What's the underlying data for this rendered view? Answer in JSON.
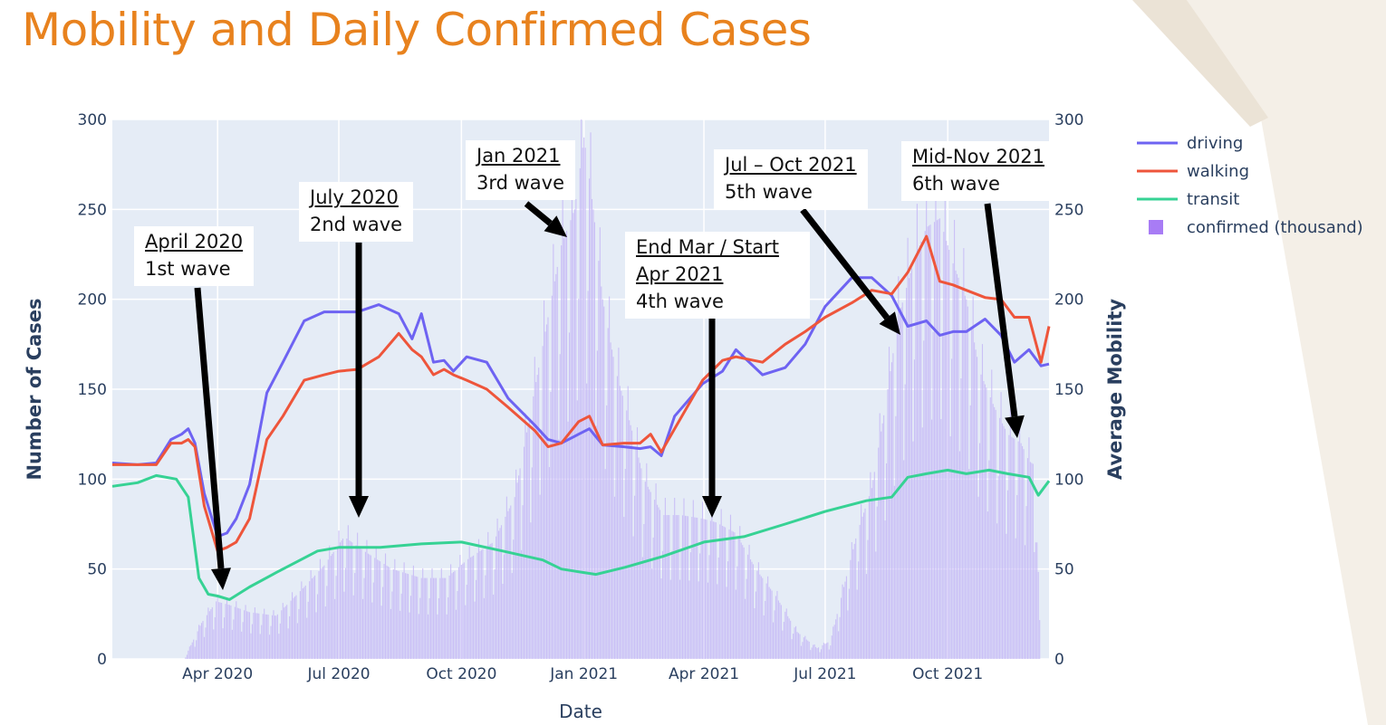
{
  "slide": {
    "title": "Mobility and Daily Confirmed Cases"
  },
  "chart_data": {
    "type": "line",
    "xlabel": "Date",
    "ylabel_left": "Number of Cases",
    "ylabel_right": "Average Mobility",
    "x_range": [
      "2020-01-13",
      "2021-12-16"
    ],
    "ylim_left": [
      0,
      300
    ],
    "ylim_right": [
      0,
      300
    ],
    "y_ticks": [
      0,
      50,
      100,
      150,
      200,
      250,
      300
    ],
    "x_ticks": [
      {
        "date": "2020-04-01",
        "label": "Apr 2020"
      },
      {
        "date": "2020-07-01",
        "label": "Jul 2020"
      },
      {
        "date": "2020-10-01",
        "label": "Oct 2020"
      },
      {
        "date": "2021-01-01",
        "label": "Jan 2021"
      },
      {
        "date": "2021-04-01",
        "label": "Apr 2021"
      },
      {
        "date": "2021-07-01",
        "label": "Jul 2021"
      },
      {
        "date": "2021-10-01",
        "label": "Oct 2021"
      }
    ],
    "grid": true,
    "legend_position": "top-right",
    "series": [
      {
        "name": "driving",
        "type": "line",
        "color": "#6e63f2",
        "x": [
          "2020-01-13",
          "2020-02-01",
          "2020-02-15",
          "2020-02-26",
          "2020-03-05",
          "2020-03-10",
          "2020-03-15",
          "2020-03-22",
          "2020-04-01",
          "2020-04-08",
          "2020-04-15",
          "2020-04-25",
          "2020-05-08",
          "2020-05-20",
          "2020-06-05",
          "2020-06-20",
          "2020-07-01",
          "2020-07-15",
          "2020-07-31",
          "2020-08-15",
          "2020-08-25",
          "2020-09-01",
          "2020-09-10",
          "2020-09-18",
          "2020-09-25",
          "2020-10-05",
          "2020-10-20",
          "2020-11-05",
          "2020-11-25",
          "2020-12-05",
          "2020-12-15",
          "2020-12-28",
          "2021-01-05",
          "2021-01-15",
          "2021-01-31",
          "2021-02-12",
          "2021-02-20",
          "2021-02-28",
          "2021-03-10",
          "2021-03-31",
          "2021-04-15",
          "2021-04-25",
          "2021-05-15",
          "2021-06-01",
          "2021-06-16",
          "2021-07-01",
          "2021-07-21",
          "2021-08-05",
          "2021-08-20",
          "2021-09-01",
          "2021-09-15",
          "2021-09-25",
          "2021-10-05",
          "2021-10-15",
          "2021-10-29",
          "2021-11-10",
          "2021-11-20",
          "2021-12-01",
          "2021-12-10",
          "2021-12-16"
        ],
        "values": [
          109,
          108,
          109,
          122,
          125,
          128,
          120,
          92,
          68,
          70,
          78,
          97,
          148,
          165,
          188,
          193,
          193,
          193,
          197,
          192,
          178,
          192,
          165,
          166,
          160,
          168,
          165,
          145,
          130,
          122,
          120,
          125,
          128,
          119,
          118,
          117,
          118,
          113,
          135,
          153,
          160,
          172,
          158,
          162,
          175,
          196,
          212,
          212,
          202,
          185,
          188,
          180,
          182,
          182,
          189,
          180,
          165,
          172,
          163,
          164
        ]
      },
      {
        "name": "walking",
        "type": "line",
        "color": "#ee553b",
        "x": [
          "2020-01-13",
          "2020-02-01",
          "2020-02-15",
          "2020-02-26",
          "2020-03-05",
          "2020-03-10",
          "2020-03-15",
          "2020-03-22",
          "2020-04-01",
          "2020-04-08",
          "2020-04-15",
          "2020-04-25",
          "2020-05-08",
          "2020-05-20",
          "2020-06-05",
          "2020-06-20",
          "2020-07-01",
          "2020-07-15",
          "2020-07-31",
          "2020-08-15",
          "2020-08-25",
          "2020-09-01",
          "2020-09-10",
          "2020-09-18",
          "2020-09-25",
          "2020-10-05",
          "2020-10-20",
          "2020-11-05",
          "2020-11-25",
          "2020-12-05",
          "2020-12-15",
          "2020-12-28",
          "2021-01-05",
          "2021-01-15",
          "2021-01-31",
          "2021-02-12",
          "2021-02-20",
          "2021-02-28",
          "2021-03-10",
          "2021-03-31",
          "2021-04-15",
          "2021-04-25",
          "2021-05-15",
          "2021-06-01",
          "2021-06-16",
          "2021-07-01",
          "2021-07-21",
          "2021-08-05",
          "2021-08-20",
          "2021-09-01",
          "2021-09-15",
          "2021-09-25",
          "2021-10-05",
          "2021-10-15",
          "2021-10-29",
          "2021-11-10",
          "2021-11-20",
          "2021-12-01",
          "2021-12-10",
          "2021-12-16"
        ],
        "values": [
          108,
          108,
          108,
          120,
          120,
          122,
          118,
          85,
          60,
          62,
          65,
          78,
          122,
          135,
          155,
          158,
          160,
          161,
          168,
          181,
          172,
          168,
          158,
          161,
          158,
          155,
          150,
          140,
          127,
          118,
          120,
          132,
          135,
          119,
          120,
          120,
          125,
          115,
          128,
          155,
          166,
          168,
          165,
          175,
          182,
          190,
          198,
          205,
          203,
          215,
          235,
          210,
          208,
          205,
          201,
          200,
          190,
          190,
          165,
          185
        ]
      },
      {
        "name": "transit",
        "type": "line",
        "color": "#36d294",
        "x": [
          "2020-01-13",
          "2020-02-01",
          "2020-02-15",
          "2020-03-01",
          "2020-03-10",
          "2020-03-18",
          "2020-03-25",
          "2020-04-01",
          "2020-04-10",
          "2020-04-25",
          "2020-05-15",
          "2020-06-15",
          "2020-07-01",
          "2020-08-01",
          "2020-09-01",
          "2020-10-01",
          "2020-11-01",
          "2020-12-01",
          "2020-12-15",
          "2021-01-01",
          "2021-01-10",
          "2021-02-01",
          "2021-03-01",
          "2021-04-01",
          "2021-05-01",
          "2021-06-01",
          "2021-07-01",
          "2021-08-01",
          "2021-08-20",
          "2021-09-01",
          "2021-09-15",
          "2021-10-01",
          "2021-10-15",
          "2021-11-01",
          "2021-11-15",
          "2021-12-01",
          "2021-12-08",
          "2021-12-16"
        ],
        "values": [
          96,
          98,
          102,
          100,
          90,
          45,
          36,
          35,
          33,
          40,
          48,
          60,
          62,
          62,
          64,
          65,
          60,
          55,
          50,
          48,
          47,
          51,
          57,
          65,
          68,
          75,
          82,
          88,
          90,
          101,
          103,
          105,
          103,
          105,
          103,
          101,
          91,
          99
        ]
      },
      {
        "name": "confirmed (thousand)",
        "type": "bar",
        "color": "#c5b8f6",
        "x": [
          "2020-03-07",
          "2020-03-20",
          "2020-03-31",
          "2020-04-10",
          "2020-04-25",
          "2020-05-15",
          "2020-06-05",
          "2020-06-20",
          "2020-07-05",
          "2020-07-20",
          "2020-08-10",
          "2020-09-01",
          "2020-09-20",
          "2020-10-05",
          "2020-10-25",
          "2020-11-10",
          "2020-11-25",
          "2020-12-05",
          "2020-12-15",
          "2020-12-25",
          "2021-01-01",
          "2021-01-08",
          "2021-01-15",
          "2021-01-25",
          "2021-02-05",
          "2021-02-15",
          "2021-03-01",
          "2021-03-15",
          "2021-03-31",
          "2021-04-10",
          "2021-04-25",
          "2021-05-10",
          "2021-05-25",
          "2021-06-10",
          "2021-06-25",
          "2021-07-05",
          "2021-07-15",
          "2021-07-25",
          "2021-08-05",
          "2021-08-15",
          "2021-08-25",
          "2021-09-05",
          "2021-09-15",
          "2021-09-25",
          "2021-10-05",
          "2021-10-15",
          "2021-10-25",
          "2021-11-05",
          "2021-11-15",
          "2021-11-25",
          "2021-12-01",
          "2021-12-05",
          "2021-12-10"
        ],
        "values": [
          0,
          20,
          32,
          30,
          26,
          24,
          40,
          52,
          68,
          60,
          50,
          45,
          45,
          55,
          65,
          90,
          150,
          190,
          230,
          250,
          290,
          250,
          200,
          160,
          130,
          100,
          80,
          80,
          78,
          76,
          70,
          50,
          35,
          15,
          6,
          10,
          40,
          70,
          95,
          140,
          190,
          220,
          240,
          245,
          220,
          200,
          160,
          140,
          125,
          120,
          110,
          108,
          0
        ]
      }
    ]
  },
  "annotations": [
    {
      "title": "April 2020",
      "text": "1st wave"
    },
    {
      "title": "July 2020",
      "text": "2nd wave"
    },
    {
      "title": "Jan 2021",
      "text": "3rd wave"
    },
    {
      "title": "End Mar / Start Apr 2021",
      "text": "4th wave"
    },
    {
      "title": "Jul – Oct 2021",
      "text": "5th wave"
    },
    {
      "title": "Mid-Nov 2021",
      "text": "6th wave"
    }
  ]
}
